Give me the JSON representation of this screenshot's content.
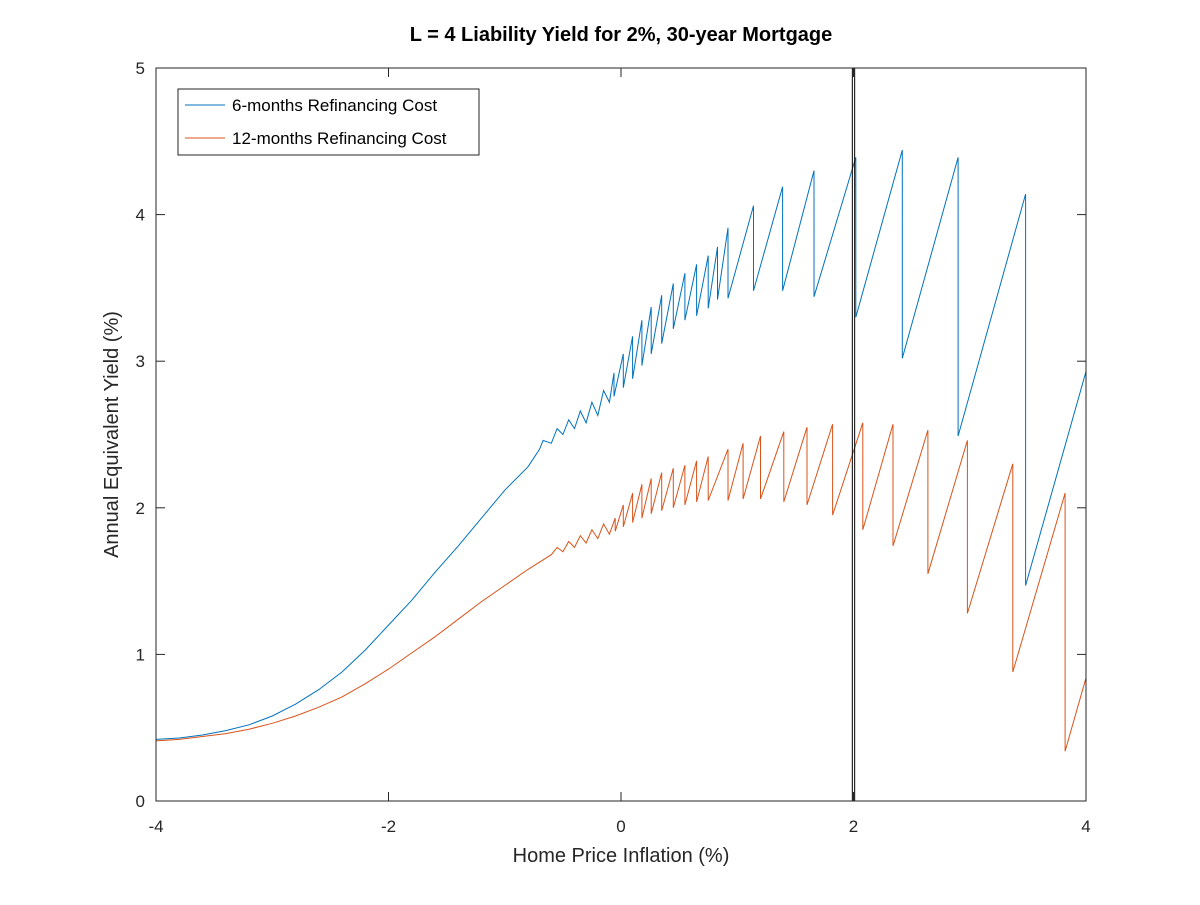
{
  "chart_data": {
    "type": "line",
    "title": "L = 4 Liability Yield for 2%, 30-year Mortgage",
    "xlabel": "Home Price Inflation (%)",
    "ylabel": "Annual Equivalent Yield (%)",
    "xlim": [
      -4,
      4
    ],
    "ylim": [
      0,
      5
    ],
    "xticks": [
      -4,
      -2,
      0,
      2,
      4
    ],
    "yticks": [
      0,
      1,
      2,
      3,
      4,
      5
    ],
    "xtick_labels": [
      "-4",
      "-2",
      "0",
      "2",
      "4"
    ],
    "ytick_labels": [
      "0",
      "1",
      "2",
      "3",
      "4",
      "5"
    ],
    "grid": false,
    "legend_position": "top-left",
    "vertical_lines": [
      1.99,
      2.01
    ],
    "series": [
      {
        "name": "6-months Refinancing Cost",
        "color": "#0072BD",
        "points": [
          [
            -4,
            0.42
          ],
          [
            -3.8,
            0.43
          ],
          [
            -3.6,
            0.45
          ],
          [
            -3.4,
            0.48
          ],
          [
            -3.2,
            0.52
          ],
          [
            -3.0,
            0.58
          ],
          [
            -2.9,
            0.62
          ],
          [
            -2.8,
            0.66
          ],
          [
            -2.6,
            0.76
          ],
          [
            -2.4,
            0.88
          ],
          [
            -2.2,
            1.03
          ],
          [
            -2.0,
            1.2
          ],
          [
            -1.8,
            1.37
          ],
          [
            -1.6,
            1.56
          ],
          [
            -1.4,
            1.74
          ],
          [
            -1.2,
            1.93
          ],
          [
            -1.0,
            2.12
          ],
          [
            -0.8,
            2.28
          ],
          [
            -0.7,
            2.4
          ],
          [
            -0.67,
            2.46
          ],
          [
            -0.6,
            2.44
          ],
          [
            -0.55,
            2.54
          ],
          [
            -0.5,
            2.5
          ],
          [
            -0.45,
            2.6
          ],
          [
            -0.4,
            2.54
          ],
          [
            -0.35,
            2.66
          ],
          [
            -0.3,
            2.58
          ],
          [
            -0.25,
            2.72
          ],
          [
            -0.2,
            2.63
          ],
          [
            -0.15,
            2.8
          ],
          [
            -0.1,
            2.72
          ],
          [
            -0.06,
            2.92
          ],
          [
            -0.06,
            2.76
          ],
          [
            0.02,
            3.05
          ],
          [
            0.02,
            2.82
          ],
          [
            0.1,
            3.17
          ],
          [
            0.1,
            2.88
          ],
          [
            0.18,
            3.28
          ],
          [
            0.18,
            2.97
          ],
          [
            0.26,
            3.37
          ],
          [
            0.26,
            3.05
          ],
          [
            0.35,
            3.45
          ],
          [
            0.35,
            3.12
          ],
          [
            0.45,
            3.53
          ],
          [
            0.45,
            3.22
          ],
          [
            0.55,
            3.6
          ],
          [
            0.55,
            3.28
          ],
          [
            0.65,
            3.66
          ],
          [
            0.65,
            3.31
          ],
          [
            0.75,
            3.72
          ],
          [
            0.75,
            3.36
          ],
          [
            0.83,
            3.78
          ],
          [
            0.83,
            3.42
          ],
          [
            0.92,
            3.91
          ],
          [
            0.92,
            3.43
          ],
          [
            1.14,
            4.06
          ],
          [
            1.14,
            3.48
          ],
          [
            1.39,
            4.19
          ],
          [
            1.39,
            3.48
          ],
          [
            1.66,
            4.3
          ],
          [
            1.66,
            3.44
          ],
          [
            2.02,
            4.39
          ],
          [
            2.02,
            3.3
          ],
          [
            2.42,
            4.44
          ],
          [
            2.42,
            3.02
          ],
          [
            2.9,
            4.39
          ],
          [
            2.9,
            2.49
          ],
          [
            3.48,
            4.14
          ],
          [
            3.48,
            1.47
          ],
          [
            4.0,
            2.93
          ]
        ]
      },
      {
        "name": "12-months Refinancing Cost",
        "color": "#D95319",
        "points": [
          [
            -4,
            0.41
          ],
          [
            -3.8,
            0.42
          ],
          [
            -3.6,
            0.44
          ],
          [
            -3.4,
            0.46
          ],
          [
            -3.2,
            0.49
          ],
          [
            -3.0,
            0.53
          ],
          [
            -2.8,
            0.58
          ],
          [
            -2.6,
            0.64
          ],
          [
            -2.4,
            0.71
          ],
          [
            -2.2,
            0.8
          ],
          [
            -2.0,
            0.9
          ],
          [
            -1.8,
            1.01
          ],
          [
            -1.6,
            1.12
          ],
          [
            -1.4,
            1.24
          ],
          [
            -1.2,
            1.36
          ],
          [
            -1.0,
            1.47
          ],
          [
            -0.8,
            1.58
          ],
          [
            -0.6,
            1.68
          ],
          [
            -0.55,
            1.73
          ],
          [
            -0.5,
            1.7
          ],
          [
            -0.45,
            1.77
          ],
          [
            -0.4,
            1.73
          ],
          [
            -0.35,
            1.81
          ],
          [
            -0.3,
            1.76
          ],
          [
            -0.25,
            1.85
          ],
          [
            -0.2,
            1.79
          ],
          [
            -0.15,
            1.89
          ],
          [
            -0.1,
            1.82
          ],
          [
            -0.05,
            1.93
          ],
          [
            -0.05,
            1.84
          ],
          [
            0.02,
            2.02
          ],
          [
            0.02,
            1.87
          ],
          [
            0.1,
            2.1
          ],
          [
            0.1,
            1.9
          ],
          [
            0.18,
            2.16
          ],
          [
            0.18,
            1.93
          ],
          [
            0.26,
            2.2
          ],
          [
            0.26,
            1.96
          ],
          [
            0.35,
            2.24
          ],
          [
            0.35,
            1.98
          ],
          [
            0.45,
            2.27
          ],
          [
            0.45,
            2.0
          ],
          [
            0.55,
            2.29
          ],
          [
            0.55,
            2.02
          ],
          [
            0.65,
            2.32
          ],
          [
            0.65,
            2.04
          ],
          [
            0.75,
            2.35
          ],
          [
            0.75,
            2.05
          ],
          [
            0.92,
            2.4
          ],
          [
            0.92,
            2.05
          ],
          [
            1.05,
            2.44
          ],
          [
            1.05,
            2.06
          ],
          [
            1.2,
            2.49
          ],
          [
            1.2,
            2.06
          ],
          [
            1.4,
            2.52
          ],
          [
            1.4,
            2.04
          ],
          [
            1.6,
            2.55
          ],
          [
            1.6,
            2.02
          ],
          [
            1.82,
            2.57
          ],
          [
            1.82,
            1.95
          ],
          [
            2.08,
            2.58
          ],
          [
            2.08,
            1.85
          ],
          [
            2.34,
            2.57
          ],
          [
            2.34,
            1.74
          ],
          [
            2.64,
            2.53
          ],
          [
            2.64,
            1.55
          ],
          [
            2.98,
            2.46
          ],
          [
            2.98,
            1.28
          ],
          [
            3.37,
            2.3
          ],
          [
            3.37,
            0.88
          ],
          [
            3.82,
            2.1
          ],
          [
            3.82,
            0.34
          ],
          [
            4.0,
            0.84
          ]
        ]
      }
    ]
  }
}
